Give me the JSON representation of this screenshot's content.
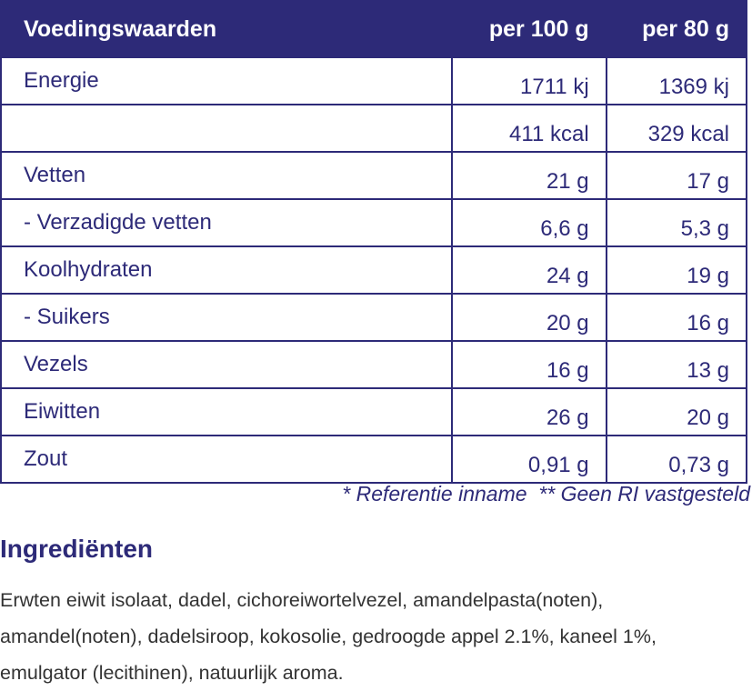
{
  "table": {
    "header": [
      "Voedingswaarden",
      "per 100 g",
      "per 80 g"
    ],
    "rows": [
      [
        "Energie",
        "1711 kj",
        "1369 kj"
      ],
      [
        null,
        "411 kcal",
        "329 kcal"
      ],
      [
        "Vetten",
        "21 g",
        "17 g"
      ],
      [
        "- Verzadigde vetten",
        "6,6 g",
        "5,3 g"
      ],
      [
        "Koolhydraten",
        "24 g",
        "19 g"
      ],
      [
        "- Suikers",
        "20 g",
        "16 g"
      ],
      [
        "Vezels",
        "16 g",
        "13 g"
      ],
      [
        "Eiwitten",
        "26 g",
        "20 g"
      ],
      [
        "Zout",
        "0,91 g",
        "0,73 g"
      ]
    ]
  },
  "footnote": "* Referentie inname  ** Geen RI vastgesteld",
  "ingredients": {
    "title": "Ingrediënten",
    "text": "Erwten eiwit isolaat, dadel, cichoreiwortelvezel, amandelpasta(noten), amandel(noten), dadelsiroop, kokosolie, gedroogde appel 2.1%, kaneel 1%, emulgator (lecithinen), natuurlijk aroma."
  }
}
